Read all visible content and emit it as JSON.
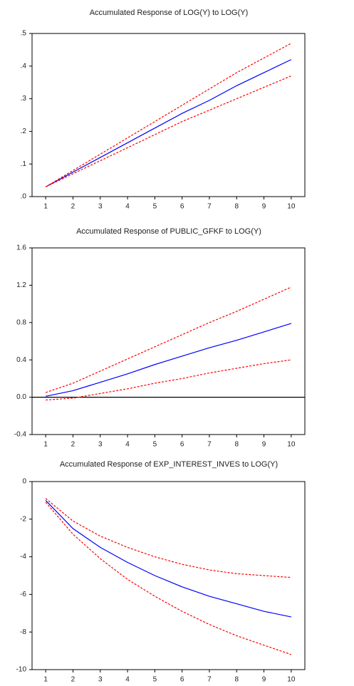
{
  "chart_data": [
    {
      "type": "line",
      "title": "Accumulated Response of LOG(Y) to LOG(Y)",
      "x": [
        1,
        2,
        3,
        4,
        5,
        6,
        7,
        8,
        9,
        10
      ],
      "xlim": [
        0.5,
        10.5
      ],
      "xticks": [
        1,
        2,
        3,
        4,
        5,
        6,
        7,
        8,
        9,
        10
      ],
      "ylim": [
        0,
        0.5
      ],
      "yticks": [
        {
          "value": 0,
          "label": ".0"
        },
        {
          "value": 0.1,
          "label": ".1"
        },
        {
          "value": 0.2,
          "label": ".2"
        },
        {
          "value": 0.3,
          "label": ".3"
        },
        {
          "value": 0.4,
          "label": ".4"
        },
        {
          "value": 0.5,
          "label": ".5"
        }
      ],
      "zero_line": false,
      "series": [
        {
          "color": "#0000ff",
          "line_style": "solid",
          "values": [
            0.03,
            0.075,
            0.12,
            0.165,
            0.21,
            0.255,
            0.295,
            0.34,
            0.38,
            0.42
          ]
        },
        {
          "color": "#ff0000",
          "line_style": "dashed",
          "values": [
            0.03,
            0.08,
            0.13,
            0.18,
            0.23,
            0.28,
            0.33,
            0.38,
            0.425,
            0.47
          ]
        },
        {
          "color": "#ff0000",
          "line_style": "dashed",
          "values": [
            0.03,
            0.07,
            0.11,
            0.15,
            0.19,
            0.23,
            0.265,
            0.3,
            0.335,
            0.37
          ]
        }
      ]
    },
    {
      "type": "line",
      "title": "Accumulated Response of PUBLIC_GFKF to LOG(Y)",
      "x": [
        1,
        2,
        3,
        4,
        5,
        6,
        7,
        8,
        9,
        10
      ],
      "xlim": [
        0.5,
        10.5
      ],
      "xticks": [
        1,
        2,
        3,
        4,
        5,
        6,
        7,
        8,
        9,
        10
      ],
      "ylim": [
        -0.4,
        1.6
      ],
      "yticks": [
        -0.4,
        {
          "value": 0,
          "label": "0.0"
        },
        0.4,
        0.8,
        1.2,
        1.6
      ],
      "zero_line": true,
      "series": [
        {
          "color": "#0000ff",
          "line_style": "solid",
          "values": [
            0.01,
            0.07,
            0.16,
            0.25,
            0.35,
            0.44,
            0.53,
            0.61,
            0.7,
            0.79
          ]
        },
        {
          "color": "#ff0000",
          "line_style": "dashed",
          "values": [
            0.05,
            0.15,
            0.28,
            0.41,
            0.54,
            0.67,
            0.8,
            0.92,
            1.05,
            1.18
          ]
        },
        {
          "color": "#ff0000",
          "line_style": "dashed",
          "values": [
            -0.03,
            -0.01,
            0.04,
            0.09,
            0.15,
            0.2,
            0.26,
            0.31,
            0.36,
            0.4
          ]
        }
      ]
    },
    {
      "type": "line",
      "title": "Accumulated Response of EXP_INTEREST_INVES to LOG(Y)",
      "x": [
        1,
        2,
        3,
        4,
        5,
        6,
        7,
        8,
        9,
        10
      ],
      "xlim": [
        0.5,
        10.5
      ],
      "xticks": [
        1,
        2,
        3,
        4,
        5,
        6,
        7,
        8,
        9,
        10
      ],
      "ylim": [
        -10,
        0
      ],
      "yticks": [
        -10,
        -8,
        -6,
        -4,
        -2,
        0
      ],
      "zero_line": false,
      "series": [
        {
          "color": "#0000ff",
          "line_style": "solid",
          "values": [
            -1.0,
            -2.5,
            -3.5,
            -4.3,
            -5.0,
            -5.6,
            -6.1,
            -6.5,
            -6.9,
            -7.2
          ]
        },
        {
          "color": "#ff0000",
          "line_style": "dashed",
          "values": [
            -0.9,
            -2.1,
            -2.9,
            -3.5,
            -4.0,
            -4.4,
            -4.7,
            -4.9,
            -5.0,
            -5.1
          ]
        },
        {
          "color": "#ff0000",
          "line_style": "dashed",
          "values": [
            -1.1,
            -2.8,
            -4.1,
            -5.2,
            -6.1,
            -6.9,
            -7.6,
            -8.2,
            -8.7,
            -9.2
          ]
        }
      ]
    }
  ]
}
